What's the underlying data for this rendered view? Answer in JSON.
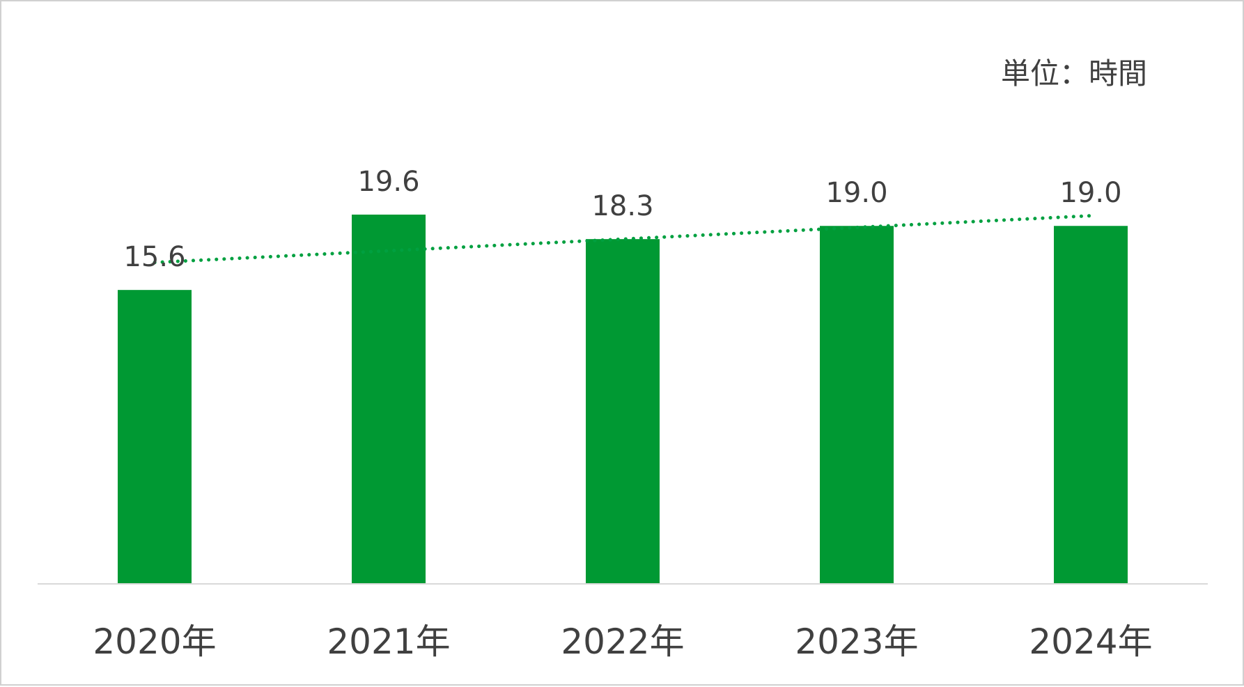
{
  "chart_data": {
    "type": "bar",
    "unit_label": "単位：時間",
    "categories": [
      "2020年",
      "2021年",
      "2022年",
      "2023年",
      "2024年"
    ],
    "values": [
      15.6,
      19.6,
      18.3,
      19.0,
      19.0
    ],
    "value_labels": [
      "15.6",
      "19.6",
      "18.3",
      "19.0",
      "19.0"
    ],
    "ylim": [
      0,
      25
    ],
    "trendline": {
      "type": "linear",
      "style": "dotted"
    },
    "grid": false,
    "legend": "none",
    "colors": {
      "bar": "#009933",
      "trendline": "#00a040",
      "axis": "#d9d9d9",
      "text": "#404040"
    }
  }
}
